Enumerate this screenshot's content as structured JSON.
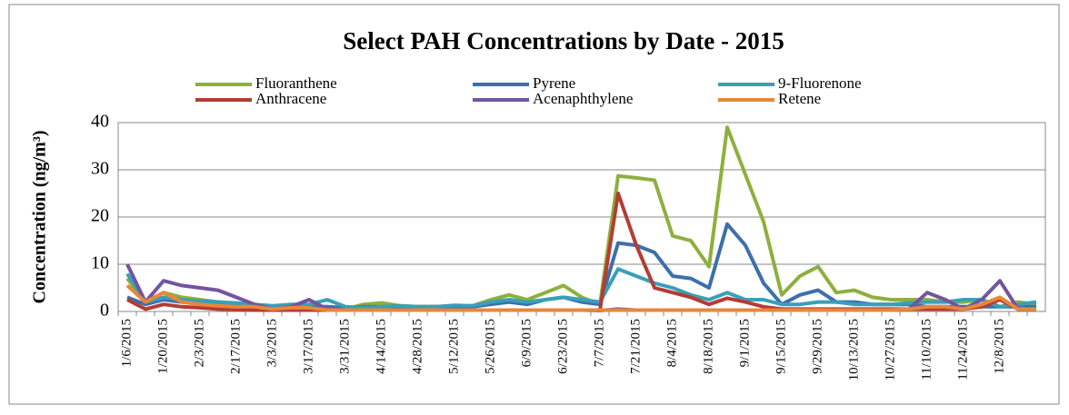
{
  "chart_data": {
    "type": "line",
    "title": "Select PAH Concentrations by Date - 2015",
    "y_label": "Concentration (ng/m³)",
    "categories": [
      "1/6/2015",
      null,
      "1/20/2015",
      null,
      "2/3/2015",
      null,
      "2/17/2015",
      null,
      "3/3/2015",
      null,
      "3/17/2015",
      null,
      "3/31/2015",
      null,
      "4/14/2015",
      null,
      "4/28/2015",
      null,
      "5/12/2015",
      null,
      "5/26/2015",
      null,
      "6/9/2015",
      null,
      "6/23/2015",
      null,
      "7/7/2015",
      null,
      "7/21/2015",
      null,
      "8/4/2015",
      null,
      "8/18/2015",
      null,
      "9/1/2015",
      null,
      "9/15/2015",
      null,
      "9/29/2015",
      null,
      "10/13/2015",
      null,
      "10/27/2015",
      null,
      "11/10/2015",
      null,
      "11/24/2015",
      null,
      "12/8/2015",
      null,
      null
    ],
    "series": [
      {
        "name": "Fluoranthene",
        "color": "#8db03d",
        "values": [
          7,
          2,
          4,
          3,
          2.5,
          2,
          1.5,
          1,
          0.8,
          1,
          0.8,
          1,
          0.5,
          1.5,
          1.8,
          1.2,
          1,
          1,
          1.2,
          1.2,
          2.5,
          3.5,
          2.5,
          4,
          5.5,
          3,
          1.5,
          28.7,
          28.3,
          27.8,
          16,
          15,
          9.5,
          39,
          29,
          19,
          3.5,
          7.5,
          9.5,
          4,
          4.5,
          3,
          2.5,
          2.5,
          2.5,
          2,
          2,
          2.5,
          1,
          2,
          1.5
        ]
      },
      {
        "name": "Pyrene",
        "color": "#3d6fad",
        "values": [
          3,
          1.5,
          2.5,
          2,
          1.8,
          1.5,
          1.2,
          1,
          1,
          1,
          1,
          1,
          0.8,
          1,
          1,
          1,
          1,
          1,
          1,
          1,
          1.5,
          2,
          1.5,
          2.5,
          3,
          2,
          1.5,
          14.5,
          14,
          12.5,
          7.5,
          7,
          5,
          18.5,
          14,
          6,
          1.5,
          3.5,
          4.5,
          2,
          2,
          1.5,
          1.5,
          1.5,
          1,
          1,
          1,
          1,
          1,
          1,
          1
        ]
      },
      {
        "name": "9-Fluorenone",
        "color": "#3a9fb8",
        "values": [
          8,
          2,
          3,
          2.5,
          2.2,
          2,
          1.8,
          1.5,
          1.2,
          1.5,
          1.5,
          2.5,
          1,
          0.8,
          1,
          1.2,
          1,
          1,
          1.3,
          1.2,
          2,
          2.5,
          2,
          2.5,
          3,
          2.5,
          2,
          9,
          7.5,
          6,
          5,
          3.5,
          2.5,
          4,
          2.5,
          2.5,
          1.5,
          1.5,
          2,
          2,
          1.5,
          1.5,
          1.5,
          1.8,
          2,
          2,
          2.5,
          2.5,
          1,
          1.5,
          2
        ]
      },
      {
        "name": "Anthracene",
        "color": "#b43c35",
        "values": [
          2.5,
          0.5,
          1.5,
          1,
          0.8,
          0.5,
          0.4,
          0.3,
          0.3,
          0.3,
          0.3,
          0.3,
          0.3,
          0.3,
          0.3,
          0.3,
          0.3,
          0.3,
          0.3,
          0.3,
          0.3,
          0.3,
          0.3,
          0.3,
          0.3,
          0.3,
          0.3,
          25,
          14,
          5,
          4,
          3,
          1.5,
          2.8,
          2,
          1,
          0.5,
          0.5,
          0.5,
          0.5,
          0.5,
          0.5,
          0.5,
          0.5,
          0.5,
          0.5,
          0.5,
          1,
          2.5,
          0.5,
          0.5
        ]
      },
      {
        "name": "Acenaphthylene",
        "color": "#7354a0",
        "values": [
          10,
          2,
          6.5,
          5.5,
          5,
          4.5,
          3,
          1.5,
          0.5,
          1,
          2.5,
          0.5,
          0.3,
          0.3,
          0.3,
          0.3,
          0.3,
          0.3,
          0.3,
          0.3,
          0.3,
          0.3,
          0.3,
          0.3,
          0.3,
          0.3,
          0.2,
          0.5,
          0.3,
          0.3,
          0.3,
          0.3,
          0.3,
          0.3,
          0.3,
          0.3,
          0.3,
          0.3,
          0.3,
          0.3,
          0.3,
          0.3,
          0.3,
          0.5,
          4,
          2.5,
          0.5,
          2.5,
          6.5,
          0.5,
          0.5
        ]
      },
      {
        "name": "Retene",
        "color": "#e6883a",
        "values": [
          5.5,
          2,
          4,
          2,
          1.5,
          1.2,
          1,
          1,
          0.5,
          0.8,
          0.8,
          0.3,
          0.3,
          0.3,
          0.3,
          0.3,
          0.3,
          0.3,
          0.3,
          0.3,
          0.3,
          0.3,
          0.3,
          0.3,
          0.3,
          0.3,
          0.3,
          0.3,
          0.3,
          0.3,
          0.3,
          0.3,
          0.3,
          0.3,
          0.3,
          0.3,
          0.3,
          0.3,
          0.3,
          0.3,
          0.3,
          0.3,
          0.3,
          0.5,
          1,
          1,
          0.5,
          1.5,
          3,
          0.5,
          0.5
        ]
      }
    ],
    "ylim": [
      0,
      40
    ],
    "yticks": [
      0,
      10,
      20,
      30,
      40
    ],
    "grid": true
  }
}
